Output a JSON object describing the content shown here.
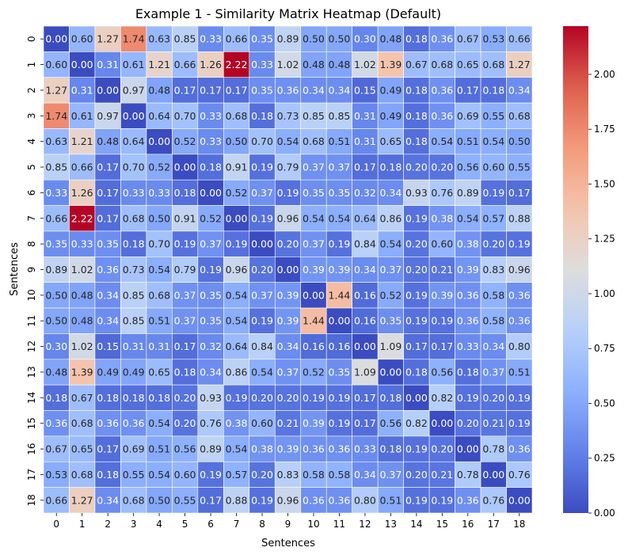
{
  "chart_data": {
    "type": "heatmap",
    "title": "Example 1 - Similarity Matrix Heatmap (Default)",
    "xlabel": "Sentences",
    "ylabel": "Sentences",
    "colormap": "coolwarm",
    "x_categories": [
      "0",
      "1",
      "2",
      "3",
      "4",
      "5",
      "6",
      "7",
      "8",
      "9",
      "10",
      "11",
      "12",
      "13",
      "14",
      "15",
      "16",
      "17",
      "18"
    ],
    "y_categories": [
      "0",
      "1",
      "2",
      "3",
      "4",
      "5",
      "6",
      "7",
      "8",
      "9",
      "10",
      "11",
      "12",
      "13",
      "14",
      "15",
      "16",
      "17",
      "18"
    ],
    "vmin": 0.0,
    "vmax": 2.22,
    "colorbar_ticks": [
      "0.00",
      "0.25",
      "0.50",
      "0.75",
      "1.00",
      "1.25",
      "1.50",
      "1.75",
      "2.00"
    ],
    "colorbar_tick_values": [
      0,
      0.25,
      0.5,
      0.75,
      1.0,
      1.25,
      1.5,
      1.75,
      2.0
    ],
    "values": [
      [
        "0.00",
        "0.60",
        "1.27",
        "1.74",
        "0.63",
        "0.85",
        "0.33",
        "0.66",
        "0.35",
        "0.89",
        "0.50",
        "0.50",
        "0.30",
        "0.48",
        "0.18",
        "0.36",
        "0.67",
        "0.53",
        "0.66"
      ],
      [
        "0.60",
        "0.00",
        "0.31",
        "0.61",
        "1.21",
        "0.66",
        "1.26",
        "2.22",
        "0.33",
        "1.02",
        "0.48",
        "0.48",
        "1.02",
        "1.39",
        "0.67",
        "0.68",
        "0.65",
        "0.68",
        "1.27"
      ],
      [
        "1.27",
        "0.31",
        "0.00",
        "0.97",
        "0.48",
        "0.17",
        "0.17",
        "0.17",
        "0.35",
        "0.36",
        "0.34",
        "0.34",
        "0.15",
        "0.49",
        "0.18",
        "0.36",
        "0.17",
        "0.18",
        "0.34"
      ],
      [
        "1.74",
        "0.61",
        "0.97",
        "0.00",
        "0.64",
        "0.70",
        "0.33",
        "0.68",
        "0.18",
        "0.73",
        "0.85",
        "0.85",
        "0.31",
        "0.49",
        "0.18",
        "0.36",
        "0.69",
        "0.55",
        "0.68"
      ],
      [
        "0.63",
        "1.21",
        "0.48",
        "0.64",
        "0.00",
        "0.52",
        "0.33",
        "0.50",
        "0.70",
        "0.54",
        "0.68",
        "0.51",
        "0.31",
        "0.65",
        "0.18",
        "0.54",
        "0.51",
        "0.54",
        "0.50"
      ],
      [
        "0.85",
        "0.66",
        "0.17",
        "0.70",
        "0.52",
        "0.00",
        "0.18",
        "0.91",
        "0.19",
        "0.79",
        "0.37",
        "0.37",
        "0.17",
        "0.18",
        "0.20",
        "0.20",
        "0.56",
        "0.60",
        "0.55"
      ],
      [
        "0.33",
        "1.26",
        "0.17",
        "0.33",
        "0.33",
        "0.18",
        "0.00",
        "0.52",
        "0.37",
        "0.19",
        "0.35",
        "0.35",
        "0.32",
        "0.34",
        "0.93",
        "0.76",
        "0.89",
        "0.19",
        "0.17"
      ],
      [
        "0.66",
        "2.22",
        "0.17",
        "0.68",
        "0.50",
        "0.91",
        "0.52",
        "0.00",
        "0.19",
        "0.96",
        "0.54",
        "0.54",
        "0.64",
        "0.86",
        "0.19",
        "0.38",
        "0.54",
        "0.57",
        "0.88"
      ],
      [
        "0.35",
        "0.33",
        "0.35",
        "0.18",
        "0.70",
        "0.19",
        "0.37",
        "0.19",
        "0.00",
        "0.20",
        "0.37",
        "0.19",
        "0.84",
        "0.54",
        "0.20",
        "0.60",
        "0.38",
        "0.20",
        "0.19"
      ],
      [
        "0.89",
        "1.02",
        "0.36",
        "0.73",
        "0.54",
        "0.79",
        "0.19",
        "0.96",
        "0.20",
        "0.00",
        "0.39",
        "0.39",
        "0.34",
        "0.37",
        "0.20",
        "0.21",
        "0.39",
        "0.83",
        "0.96"
      ],
      [
        "0.50",
        "0.48",
        "0.34",
        "0.85",
        "0.68",
        "0.37",
        "0.35",
        "0.54",
        "0.37",
        "0.39",
        "0.00",
        "1.44",
        "0.16",
        "0.52",
        "0.19",
        "0.39",
        "0.36",
        "0.58",
        "0.36"
      ],
      [
        "0.50",
        "0.48",
        "0.34",
        "0.85",
        "0.51",
        "0.37",
        "0.35",
        "0.54",
        "0.19",
        "0.39",
        "1.44",
        "0.00",
        "0.16",
        "0.35",
        "0.19",
        "0.19",
        "0.36",
        "0.58",
        "0.36"
      ],
      [
        "0.30",
        "1.02",
        "0.15",
        "0.31",
        "0.31",
        "0.17",
        "0.32",
        "0.64",
        "0.84",
        "0.34",
        "0.16",
        "0.16",
        "0.00",
        "1.09",
        "0.17",
        "0.17",
        "0.33",
        "0.34",
        "0.80"
      ],
      [
        "0.48",
        "1.39",
        "0.49",
        "0.49",
        "0.65",
        "0.18",
        "0.34",
        "0.86",
        "0.54",
        "0.37",
        "0.52",
        "0.35",
        "1.09",
        "0.00",
        "0.18",
        "0.56",
        "0.18",
        "0.37",
        "0.51"
      ],
      [
        "0.18",
        "0.67",
        "0.18",
        "0.18",
        "0.18",
        "0.20",
        "0.93",
        "0.19",
        "0.20",
        "0.20",
        "0.19",
        "0.19",
        "0.17",
        "0.18",
        "0.00",
        "0.82",
        "0.19",
        "0.20",
        "0.19"
      ],
      [
        "0.36",
        "0.68",
        "0.36",
        "0.36",
        "0.54",
        "0.20",
        "0.76",
        "0.38",
        "0.60",
        "0.21",
        "0.39",
        "0.19",
        "0.17",
        "0.56",
        "0.82",
        "0.00",
        "0.20",
        "0.21",
        "0.19"
      ],
      [
        "0.67",
        "0.65",
        "0.17",
        "0.69",
        "0.51",
        "0.56",
        "0.89",
        "0.54",
        "0.38",
        "0.39",
        "0.36",
        "0.36",
        "0.33",
        "0.18",
        "0.19",
        "0.20",
        "0.00",
        "0.78",
        "0.36"
      ],
      [
        "0.53",
        "0.68",
        "0.18",
        "0.55",
        "0.54",
        "0.60",
        "0.19",
        "0.57",
        "0.20",
        "0.83",
        "0.58",
        "0.58",
        "0.34",
        "0.37",
        "0.20",
        "0.21",
        "0.78",
        "0.00",
        "0.76"
      ],
      [
        "0.66",
        "1.27",
        "0.34",
        "0.68",
        "0.50",
        "0.55",
        "0.17",
        "0.88",
        "0.19",
        "0.96",
        "0.36",
        "0.36",
        "0.80",
        "0.51",
        "0.19",
        "0.19",
        "0.36",
        "0.76",
        "0.00"
      ]
    ]
  }
}
